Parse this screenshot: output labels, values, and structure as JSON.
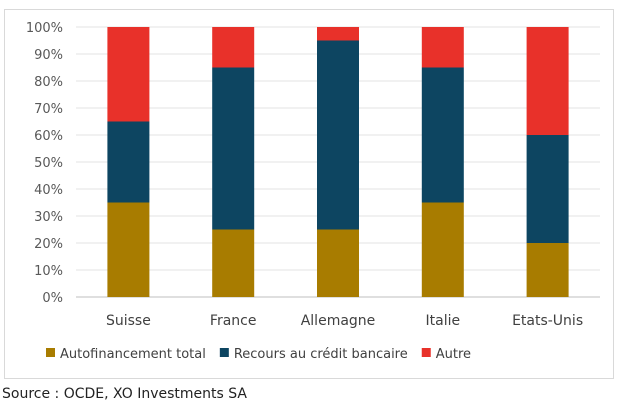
{
  "chart_data": {
    "type": "bar",
    "stacked": true,
    "categories": [
      "Suisse",
      "France",
      "Allemagne",
      "Italie",
      "Etats-Unis"
    ],
    "series": [
      {
        "name": "Autofinancement total",
        "color": "#a87c00",
        "values": [
          35,
          25,
          25,
          35,
          20
        ]
      },
      {
        "name": "Recours au crédit bancaire",
        "color": "#0d4561",
        "values": [
          30,
          60,
          70,
          50,
          40
        ]
      },
      {
        "name": "Autre",
        "color": "#e8312a",
        "values": [
          35,
          15,
          5,
          15,
          40
        ]
      }
    ],
    "yticks": [
      "0%",
      "10%",
      "20%",
      "30%",
      "40%",
      "50%",
      "60%",
      "70%",
      "80%",
      "90%",
      "100%"
    ],
    "ylim": [
      0,
      100
    ],
    "grid": true,
    "legend": "bottom"
  },
  "source": "Source : OCDE, XO Investments SA"
}
